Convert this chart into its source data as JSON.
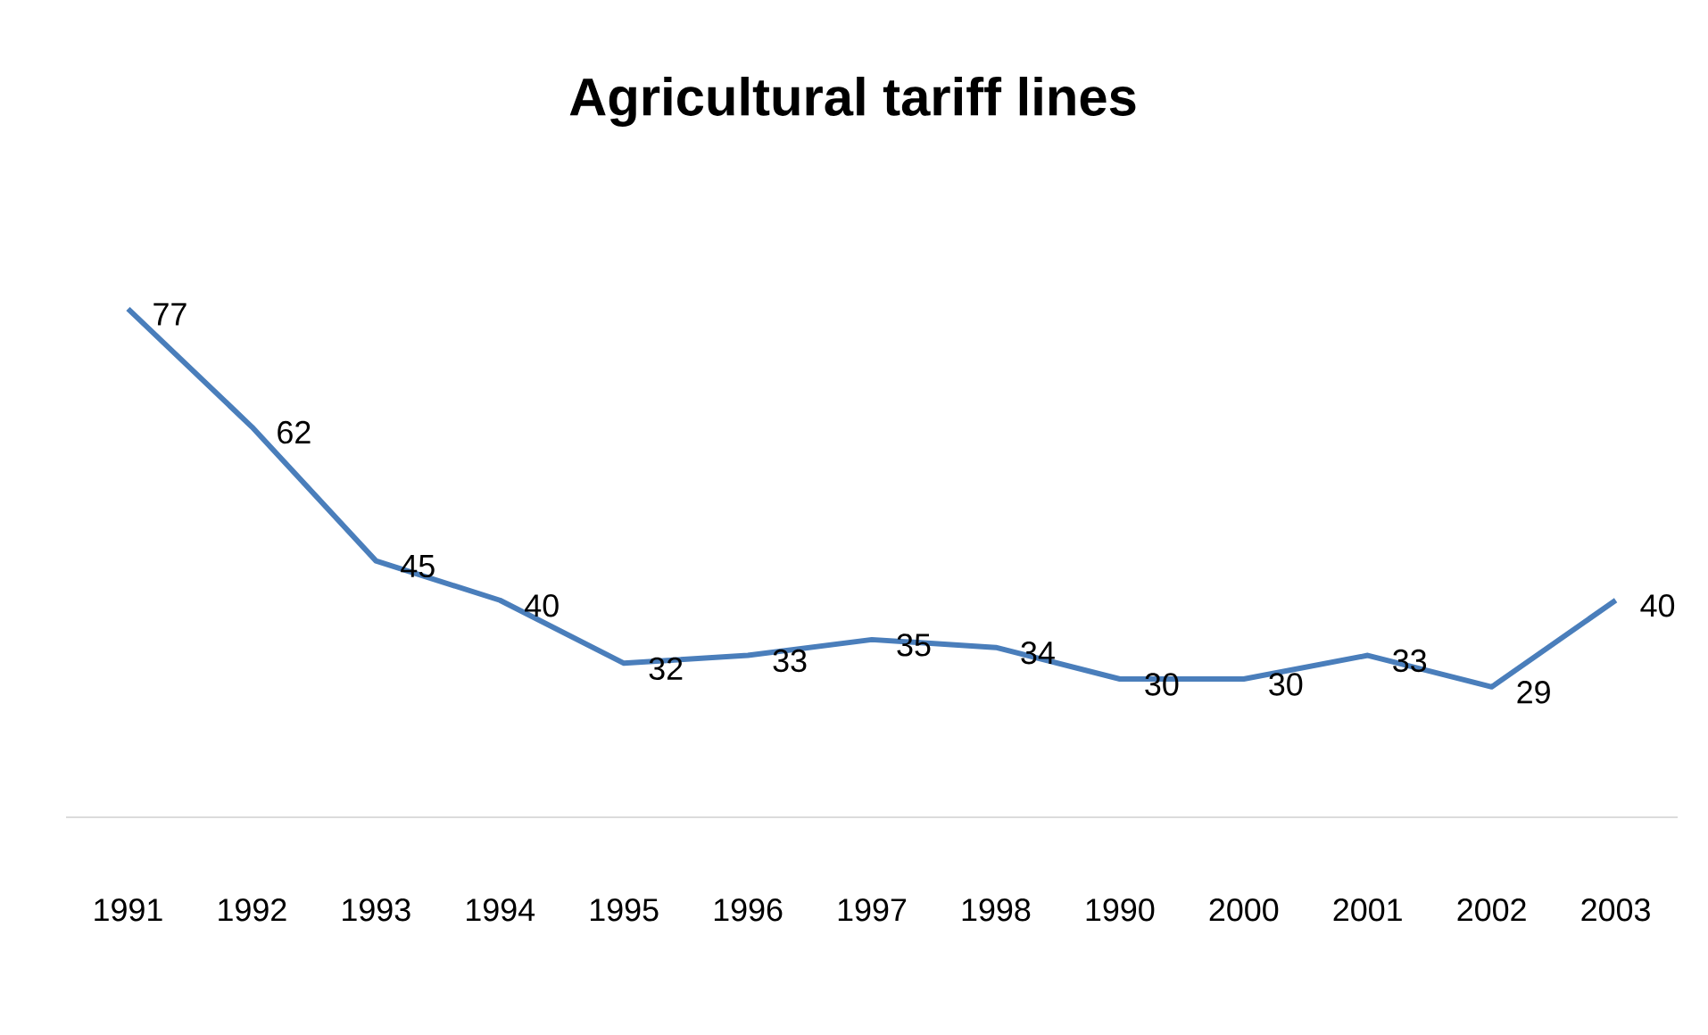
{
  "chart_data": {
    "type": "line",
    "title": "Agricultural tariff lines",
    "categories": [
      "1991",
      "1992",
      "1993",
      "1994",
      "1995",
      "1996",
      "1997",
      "1998",
      "1990",
      "2000",
      "2001",
      "2002",
      "2003"
    ],
    "values": [
      77,
      62,
      45,
      40,
      32,
      33,
      35,
      34,
      30,
      30,
      33,
      29,
      40
    ],
    "color": "#4a7ebb",
    "data_labels": true,
    "marker": "none",
    "line_style": "solid"
  }
}
